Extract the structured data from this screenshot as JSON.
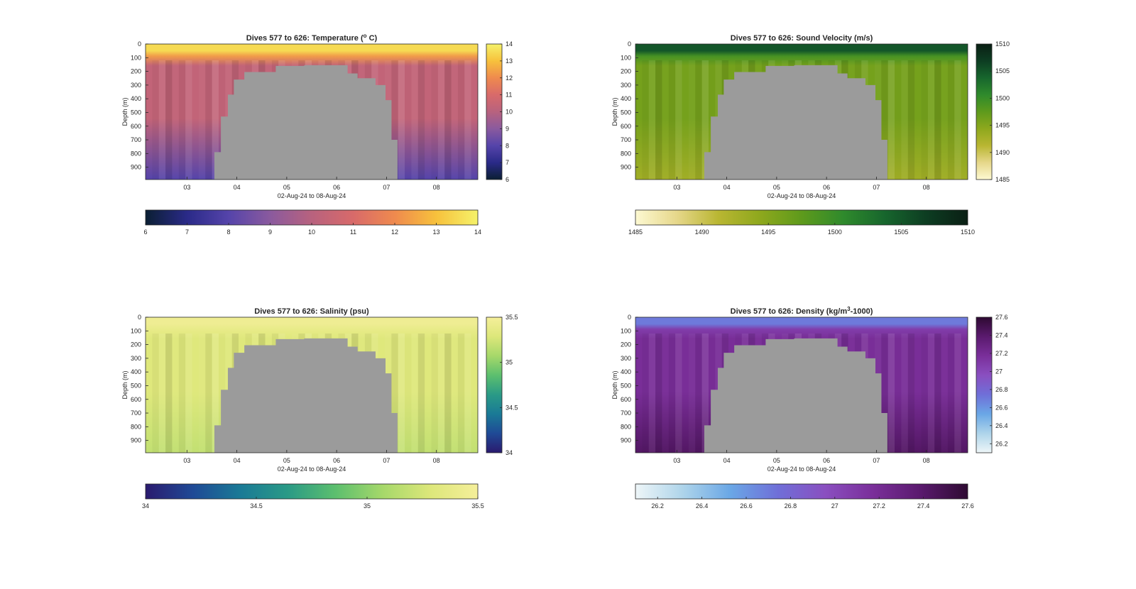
{
  "figure": {
    "xlabel": "02-Aug-24 to 08-Aug-24"
  },
  "chart_data": [
    {
      "type": "heatmap",
      "title": "Dives 577 to 626: Temperature (",
      "title_sup": "o",
      "title_end": " C)",
      "xlabel": "02-Aug-24 to 08-Aug-24",
      "ylabel": "Depth (m)",
      "x_ticks": [
        "03",
        "04",
        "05",
        "06",
        "07",
        "08"
      ],
      "y_ticks": [
        "0",
        "100",
        "200",
        "300",
        "400",
        "500",
        "600",
        "700",
        "800",
        "900"
      ],
      "ylim": [
        0,
        990
      ],
      "y_reversed": true,
      "clim": [
        6,
        14
      ],
      "colorbar_ticks_right": [
        "6",
        "7",
        "8",
        "9",
        "10",
        "11",
        "12",
        "13",
        "14"
      ],
      "colorbar_ticks_bottom": [
        "6",
        "7",
        "8",
        "9",
        "10",
        "11",
        "12",
        "13",
        "14"
      ],
      "colormap": [
        "#0b1f33",
        "#2a2a88",
        "#5544aa",
        "#8a5a9e",
        "#b8627e",
        "#d86a6a",
        "#ef8a4e",
        "#f7c13c",
        "#f5f26a"
      ],
      "surface_value": 13.5,
      "mixed_layer_value": 12.3,
      "interior_value": 10.3,
      "deep_value": 8.0,
      "no_data_color": "#9b9b9b",
      "profile_depth_outline_m": [
        {
          "day": 3.55,
          "depth": 790
        },
        {
          "day": 3.68,
          "depth": 530
        },
        {
          "day": 3.82,
          "depth": 370
        },
        {
          "day": 3.94,
          "depth": 260
        },
        {
          "day": 4.15,
          "depth": 205
        },
        {
          "day": 4.48,
          "depth": 205
        },
        {
          "day": 4.78,
          "depth": 160
        },
        {
          "day": 5.35,
          "depth": 155
        },
        {
          "day": 5.95,
          "depth": 155
        },
        {
          "day": 6.22,
          "depth": 215
        },
        {
          "day": 6.42,
          "depth": 250
        },
        {
          "day": 6.78,
          "depth": 300
        },
        {
          "day": 6.98,
          "depth": 410
        },
        {
          "day": 7.1,
          "depth": 700
        },
        {
          "day": 7.22,
          "depth": 990
        }
      ]
    },
    {
      "type": "heatmap",
      "title": "Dives 577 to 626: Sound Velocity (m/s)",
      "xlabel": "02-Aug-24 to 08-Aug-24",
      "ylabel": "Depth (m)",
      "x_ticks": [
        "03",
        "04",
        "05",
        "06",
        "07",
        "08"
      ],
      "y_ticks": [
        "0",
        "100",
        "200",
        "300",
        "400",
        "500",
        "600",
        "700",
        "800",
        "900"
      ],
      "ylim": [
        0,
        990
      ],
      "y_reversed": true,
      "clim": [
        1485,
        1510
      ],
      "colorbar_ticks_right": [
        "1485",
        "1490",
        "1495",
        "1500",
        "1505",
        "1510"
      ],
      "colorbar_ticks_bottom": [
        "1485",
        "1490",
        "1495",
        "1500",
        "1505",
        "1510"
      ],
      "colormap": [
        "#fdf9d2",
        "#e6d78a",
        "#b9b632",
        "#8ea81d",
        "#5e9a1c",
        "#2f8a2c",
        "#17662d",
        "#0d3d22",
        "#0a1f14"
      ],
      "surface_value": 1505,
      "mixed_layer_value": 1499,
      "interior_value": 1496,
      "deep_value": 1493,
      "no_data_color": "#9b9b9b",
      "profile_depth_outline_m": [
        {
          "day": 3.55,
          "depth": 790
        },
        {
          "day": 3.68,
          "depth": 530
        },
        {
          "day": 3.82,
          "depth": 370
        },
        {
          "day": 3.94,
          "depth": 260
        },
        {
          "day": 4.15,
          "depth": 205
        },
        {
          "day": 4.48,
          "depth": 205
        },
        {
          "day": 4.78,
          "depth": 160
        },
        {
          "day": 5.35,
          "depth": 155
        },
        {
          "day": 5.95,
          "depth": 155
        },
        {
          "day": 6.22,
          "depth": 215
        },
        {
          "day": 6.42,
          "depth": 250
        },
        {
          "day": 6.78,
          "depth": 300
        },
        {
          "day": 6.98,
          "depth": 410
        },
        {
          "day": 7.1,
          "depth": 700
        },
        {
          "day": 7.22,
          "depth": 990
        }
      ]
    },
    {
      "type": "heatmap",
      "title": "Dives 577 to 626: Salinity (psu)",
      "xlabel": "02-Aug-24 to 08-Aug-24",
      "ylabel": "Depth (m)",
      "x_ticks": [
        "03",
        "04",
        "05",
        "06",
        "07",
        "08"
      ],
      "y_ticks": [
        "0",
        "100",
        "200",
        "300",
        "400",
        "500",
        "600",
        "700",
        "800",
        "900"
      ],
      "ylim": [
        0,
        990
      ],
      "y_reversed": true,
      "clim": [
        34,
        35.5
      ],
      "colorbar_ticks_right": [
        "34",
        "34.5",
        "35",
        "35.5"
      ],
      "colorbar_ticks_bottom": [
        "34",
        "34.5",
        "35",
        "35.5"
      ],
      "colormap": [
        "#2a1a6e",
        "#1f4a96",
        "#1a7a96",
        "#2a9a86",
        "#5cbf6e",
        "#a6d86a",
        "#dde77a",
        "#f5ef9a"
      ],
      "surface_value": 35.45,
      "mixed_layer_value": 35.38,
      "interior_value": 35.3,
      "deep_value": 35.18,
      "no_data_color": "#9b9b9b",
      "profile_depth_outline_m": [
        {
          "day": 3.55,
          "depth": 790
        },
        {
          "day": 3.68,
          "depth": 530
        },
        {
          "day": 3.82,
          "depth": 370
        },
        {
          "day": 3.94,
          "depth": 260
        },
        {
          "day": 4.15,
          "depth": 205
        },
        {
          "day": 4.48,
          "depth": 205
        },
        {
          "day": 4.78,
          "depth": 160
        },
        {
          "day": 5.35,
          "depth": 155
        },
        {
          "day": 5.95,
          "depth": 155
        },
        {
          "day": 6.22,
          "depth": 215
        },
        {
          "day": 6.42,
          "depth": 250
        },
        {
          "day": 6.78,
          "depth": 300
        },
        {
          "day": 6.98,
          "depth": 410
        },
        {
          "day": 7.1,
          "depth": 700
        },
        {
          "day": 7.22,
          "depth": 990
        }
      ]
    },
    {
      "type": "heatmap",
      "title": "Dives 577 to 626: Density (kg/m",
      "title_sup": "3",
      "title_end": "-1000)",
      "xlabel": "02-Aug-24 to 08-Aug-24",
      "ylabel": "Depth (m)",
      "x_ticks": [
        "03",
        "04",
        "05",
        "06",
        "07",
        "08"
      ],
      "y_ticks": [
        "0",
        "100",
        "200",
        "300",
        "400",
        "500",
        "600",
        "700",
        "800",
        "900"
      ],
      "ylim": [
        0,
        990
      ],
      "y_reversed": true,
      "clim": [
        26.1,
        27.6
      ],
      "colorbar_ticks_right": [
        "26.2",
        "26.4",
        "26.6",
        "26.8",
        "27",
        "27.2",
        "27.4",
        "27.6"
      ],
      "colorbar_ticks_bottom": [
        "26.2",
        "26.4",
        "26.6",
        "26.8",
        "27",
        "27.2",
        "27.4",
        "27.6"
      ],
      "colormap": [
        "#eef6f8",
        "#aed4ea",
        "#6aa7e6",
        "#6f6fd8",
        "#8a4fc0",
        "#7a2f9a",
        "#5a1a6e",
        "#2e0a32"
      ],
      "surface_value": 26.7,
      "mixed_layer_value": 27.08,
      "interior_value": 27.18,
      "deep_value": 27.42,
      "no_data_color": "#9b9b9b",
      "profile_depth_outline_m": [
        {
          "day": 3.55,
          "depth": 790
        },
        {
          "day": 3.68,
          "depth": 530
        },
        {
          "day": 3.82,
          "depth": 370
        },
        {
          "day": 3.94,
          "depth": 260
        },
        {
          "day": 4.15,
          "depth": 205
        },
        {
          "day": 4.48,
          "depth": 205
        },
        {
          "day": 4.78,
          "depth": 160
        },
        {
          "day": 5.35,
          "depth": 155
        },
        {
          "day": 5.95,
          "depth": 155
        },
        {
          "day": 6.22,
          "depth": 215
        },
        {
          "day": 6.42,
          "depth": 250
        },
        {
          "day": 6.78,
          "depth": 300
        },
        {
          "day": 6.98,
          "depth": 410
        },
        {
          "day": 7.1,
          "depth": 700
        },
        {
          "day": 7.22,
          "depth": 990
        }
      ]
    }
  ]
}
